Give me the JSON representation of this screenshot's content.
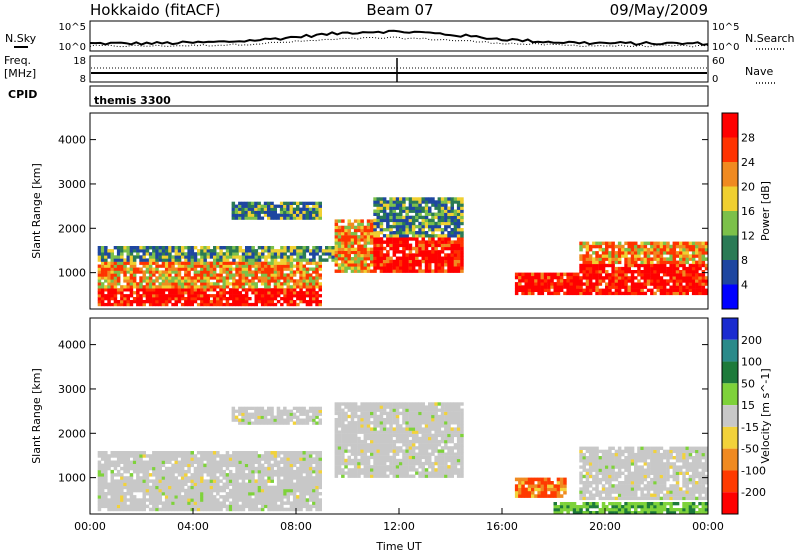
{
  "header": {
    "station": "Hokkaido (fitACF)",
    "beam": "Beam 07",
    "date": "09/May/2009"
  },
  "top_panels": {
    "nsky_label": "N.Sky",
    "nsky_ticks": [
      "10^5",
      "10^0"
    ],
    "nsearch_label": "N.Search",
    "nsearch_ticks": [
      "10^5",
      "10^0"
    ],
    "freq_label": "Freq.",
    "freq_unit": "[MHz]",
    "freq_ticks": [
      "18",
      "8"
    ],
    "nave_label": "Nave",
    "nave_ticks": [
      "60",
      "0"
    ],
    "cpid_label": "CPID",
    "cpid_value": "themis 3300"
  },
  "chart_data": [
    {
      "type": "heatmap",
      "title": "",
      "xlabel": "",
      "ylabel": "Slant Range [km]",
      "xlim": [
        "00:00",
        "24:00"
      ],
      "ylim": [
        180,
        4600
      ],
      "yticks": [
        "1000",
        "2000",
        "3000",
        "4000"
      ],
      "colorbar": {
        "label": "Power [dB]",
        "ticks": [
          "4",
          "8",
          "12",
          "16",
          "20",
          "24",
          "28"
        ],
        "colors": [
          "#0000ff",
          "#1e46a0",
          "#2a7a55",
          "#7cc04a",
          "#f0d030",
          "#f08a20",
          "#ff3300",
          "#ff0000"
        ]
      },
      "regions": [
        {
          "t0": 0.3,
          "t1": 9.0,
          "r0": 250,
          "r1": 650,
          "level": "high"
        },
        {
          "t0": 0.3,
          "t1": 9.0,
          "r0": 650,
          "r1": 1250,
          "level": "medium"
        },
        {
          "t0": 0.3,
          "t1": 9.5,
          "r0": 1250,
          "r1": 1600,
          "level": "low"
        },
        {
          "t0": 5.5,
          "t1": 9.0,
          "r0": 2200,
          "r1": 2600,
          "level": "low"
        },
        {
          "t0": 9.5,
          "t1": 11.0,
          "r0": 1000,
          "r1": 2200,
          "level": "medium"
        },
        {
          "t0": 11.0,
          "t1": 14.5,
          "r0": 1000,
          "r1": 1800,
          "level": "high"
        },
        {
          "t0": 11.0,
          "t1": 14.5,
          "r0": 1800,
          "r1": 2700,
          "level": "low"
        },
        {
          "t0": 16.5,
          "t1": 19.0,
          "r0": 500,
          "r1": 1000,
          "level": "high"
        },
        {
          "t0": 19.0,
          "t1": 24.0,
          "r0": 500,
          "r1": 1200,
          "level": "high"
        },
        {
          "t0": 19.0,
          "t1": 24.0,
          "r0": 1200,
          "r1": 1700,
          "level": "medium"
        }
      ]
    },
    {
      "type": "heatmap",
      "title": "",
      "xlabel": "Time UT",
      "ylabel": "Slant Range [km]",
      "xlim": [
        "00:00",
        "24:00"
      ],
      "ylim": [
        180,
        4600
      ],
      "xticks": [
        "00:00",
        "04:00",
        "08:00",
        "12:00",
        "16:00",
        "20:00",
        "00:00"
      ],
      "yticks": [
        "1000",
        "2000",
        "3000",
        "4000"
      ],
      "colorbar": {
        "label": "Velocity [m s^-1]",
        "ticks": [
          "200",
          "100",
          "50",
          "15",
          "-15",
          "-50",
          "-100",
          "-200"
        ],
        "colors": [
          "#1a2bd0",
          "#2a8a8a",
          "#1d7a3a",
          "#7ed23a",
          "#c8c8c8",
          "#f2d23a",
          "#f08a20",
          "#ff3a00",
          "#ff0000"
        ]
      },
      "regions": [
        {
          "t0": 0.3,
          "t1": 9.0,
          "r0": 250,
          "r1": 1600,
          "level": "ground"
        },
        {
          "t0": 5.5,
          "t1": 9.0,
          "r0": 2200,
          "r1": 2600,
          "level": "ground"
        },
        {
          "t0": 9.5,
          "t1": 14.5,
          "r0": 1000,
          "r1": 2700,
          "level": "ground"
        },
        {
          "t0": 16.5,
          "t1": 18.5,
          "r0": 550,
          "r1": 1000,
          "level": "negative"
        },
        {
          "t0": 19.0,
          "t1": 24.0,
          "r0": 500,
          "r1": 1700,
          "level": "ground"
        },
        {
          "t0": 18.0,
          "t1": 24.0,
          "r0": 180,
          "r1": 450,
          "level": "positive_low"
        }
      ]
    }
  ]
}
